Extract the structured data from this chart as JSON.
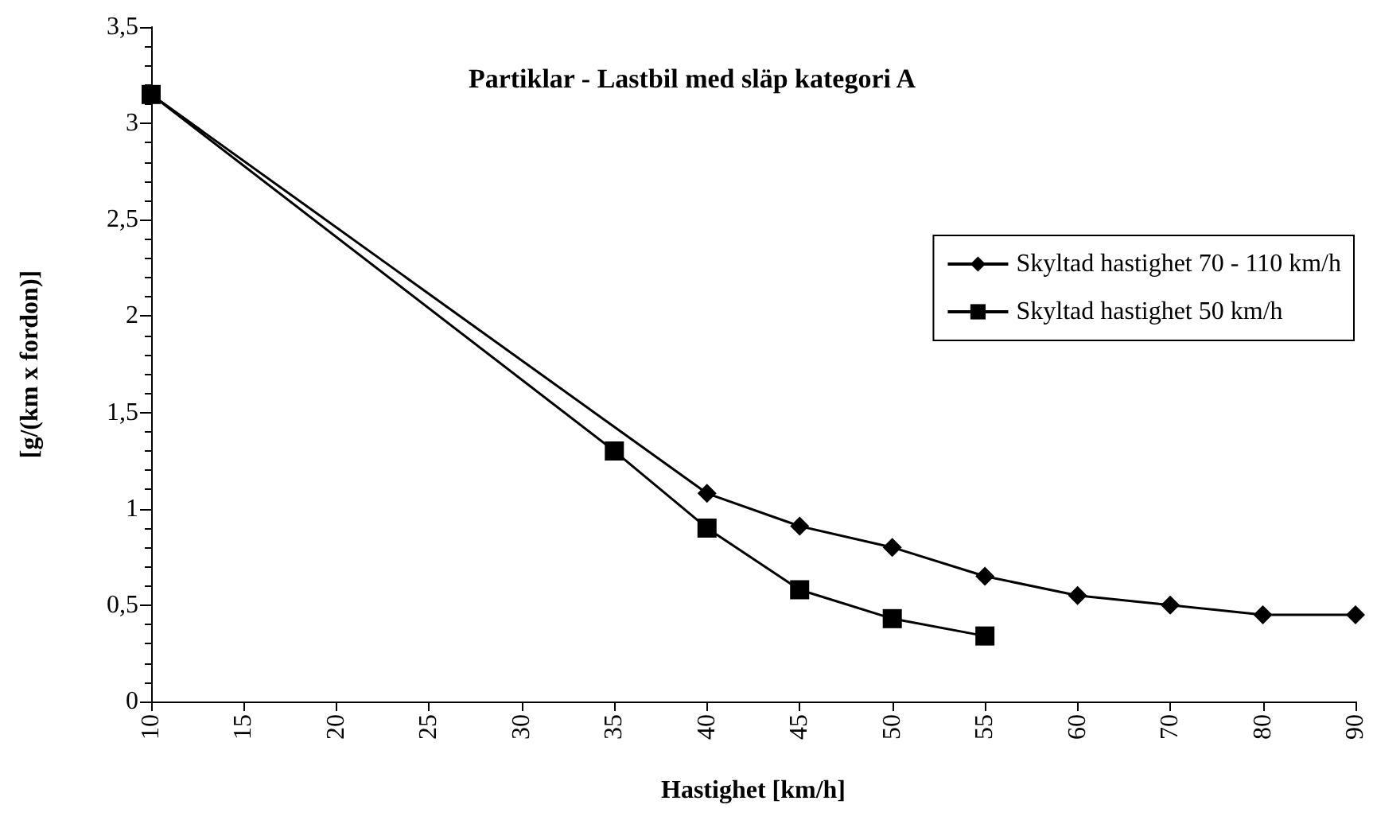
{
  "chart_data": {
    "type": "line",
    "title": "Partiklar - Lastbil med släp kategori A",
    "xlabel": "Hastighet [km/h]",
    "ylabel": "[g/(km x fordon)]",
    "categories": [
      "10",
      "15",
      "20",
      "25",
      "30",
      "35",
      "40",
      "45",
      "50",
      "55",
      "60",
      "70",
      "80",
      "90"
    ],
    "series": [
      {
        "name": "Skyltad hastighet 70 - 110 km/h",
        "color": "#000000",
        "marker": "diamond",
        "values": [
          3.15,
          null,
          null,
          null,
          null,
          null,
          1.08,
          0.91,
          0.8,
          0.65,
          0.55,
          0.5,
          0.45,
          0.45
        ]
      },
      {
        "name": "Skyltad hastighet 50 km/h",
        "color": "#000000",
        "marker": "square",
        "values": [
          3.15,
          null,
          null,
          null,
          null,
          1.3,
          0.9,
          0.58,
          0.43,
          0.34,
          null,
          null,
          null,
          null
        ]
      }
    ],
    "ylim": [
      0,
      3.5
    ],
    "yticks": [
      0,
      {
        "value": 0.5,
        "label": "0,5"
      },
      1,
      {
        "value": 1.5,
        "label": "1,5"
      },
      2,
      {
        "value": 2.5,
        "label": "2,5"
      },
      3,
      {
        "value": 3.5,
        "label": "3,5"
      }
    ],
    "grid": false,
    "legend": "right",
    "line_style": "solid"
  }
}
